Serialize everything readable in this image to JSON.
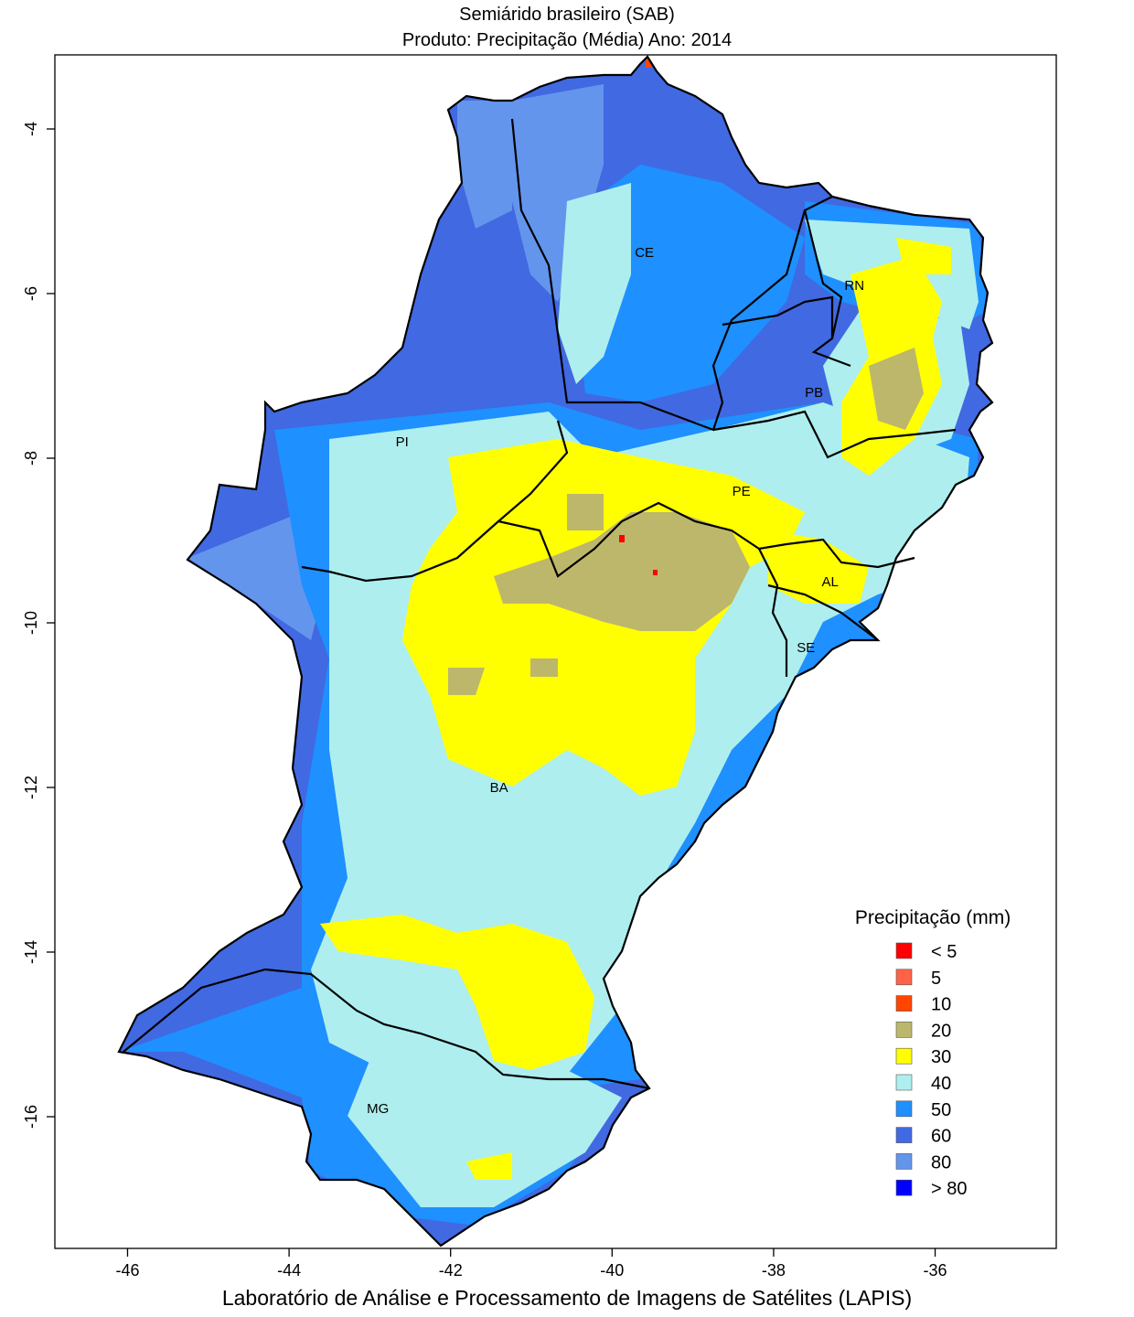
{
  "header": {
    "title": "Semiárido brasileiro (SAB)",
    "subtitle": "Produto: Precipitação (Média)     Ano:  2014"
  },
  "footer": {
    "credit": "Laboratório de Análise e Processamento de Imagens de Satélites (LAPIS)"
  },
  "chart_data": {
    "type": "heatmap",
    "title": "Semiárido brasileiro (SAB)",
    "subtitle": "Produto: Precipitação (Média)     Ano:  2014",
    "xlabel": "",
    "ylabel": "",
    "xlim": [
      -46.9,
      -34.5
    ],
    "ylim": [
      -17.6,
      -3.1
    ],
    "x_ticks": [
      -46,
      -44,
      -42,
      -40,
      -38,
      -36
    ],
    "y_ticks": [
      -4,
      -6,
      -8,
      -10,
      -12,
      -14,
      -16
    ],
    "grid": false,
    "states": [
      {
        "label": "CE",
        "lon": -39.6,
        "lat": -5.5
      },
      {
        "label": "RN",
        "lon": -37.0,
        "lat": -5.9
      },
      {
        "label": "PB",
        "lon": -37.5,
        "lat": -7.2
      },
      {
        "label": "PE",
        "lon": -38.4,
        "lat": -8.4
      },
      {
        "label": "PI",
        "lon": -42.6,
        "lat": -7.8
      },
      {
        "label": "AL",
        "lon": -37.3,
        "lat": -9.5
      },
      {
        "label": "SE",
        "lon": -37.6,
        "lat": -10.3
      },
      {
        "label": "BA",
        "lon": -41.4,
        "lat": -12.0
      },
      {
        "label": "MG",
        "lon": -42.9,
        "lat": -15.9
      }
    ],
    "legend": {
      "title": "Precipitação (mm)",
      "position": "bottom-right",
      "entries": [
        {
          "label": "< 5",
          "color": "#ff0000"
        },
        {
          "label": "5",
          "color": "#ff6347"
        },
        {
          "label": "10",
          "color": "#ff4500"
        },
        {
          "label": "20",
          "color": "#bdb76b"
        },
        {
          "label": "30",
          "color": "#ffff00"
        },
        {
          "label": "40",
          "color": "#aeeeee"
        },
        {
          "label": "50",
          "color": "#1e90ff"
        },
        {
          "label": "60",
          "color": "#4169e1"
        },
        {
          "label": "80",
          "color": "#6495ed"
        },
        {
          "label": "> 80",
          "color": "#0000ff"
        }
      ]
    }
  }
}
